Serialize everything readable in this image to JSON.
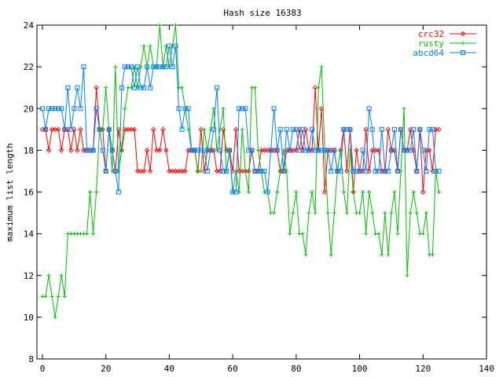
{
  "chart_data": {
    "type": "line",
    "title": "Hash size 16383",
    "xlabel": "",
    "ylabel": "maximum list length",
    "xlim": [
      0,
      140
    ],
    "ylim": [
      8,
      24
    ],
    "xticks": [
      0,
      20,
      40,
      60,
      80,
      100,
      120,
      140
    ],
    "yticks": [
      8,
      10,
      12,
      14,
      16,
      18,
      20,
      22,
      24
    ],
    "grid": false,
    "legend_position": "top-right",
    "series": [
      {
        "name": "crc32",
        "color": "#ff0000",
        "marker": "diamond",
        "x": [
          0,
          1,
          2,
          3,
          4,
          5,
          6,
          7,
          8,
          9,
          10,
          11,
          12,
          13,
          14,
          15,
          16,
          17,
          18,
          19,
          20,
          21,
          22,
          23,
          24,
          25,
          26,
          27,
          28,
          29,
          30,
          31,
          32,
          33,
          34,
          35,
          36,
          37,
          38,
          39,
          40,
          41,
          42,
          43,
          44,
          45,
          46,
          47,
          48,
          49,
          50,
          51,
          52,
          53,
          54,
          55,
          56,
          57,
          58,
          59,
          60,
          61,
          62,
          63,
          64,
          65,
          66,
          67,
          68,
          69,
          70,
          71,
          72,
          73,
          74,
          75,
          76,
          77,
          78,
          79,
          80,
          81,
          82,
          83,
          84,
          85,
          86,
          87,
          88,
          89,
          90,
          91,
          92,
          93,
          94,
          95,
          96,
          97,
          98,
          99,
          100,
          101,
          102,
          103,
          104,
          105,
          106,
          107,
          108,
          109,
          110,
          111,
          112,
          113,
          114,
          115,
          116,
          117,
          118,
          119,
          120,
          121,
          122,
          123,
          124,
          125
        ],
        "y": [
          19,
          19,
          18,
          19,
          19,
          19,
          18,
          19,
          19,
          18,
          19,
          18,
          19,
          18,
          18,
          18,
          18,
          21,
          19,
          19,
          17,
          19,
          18,
          17,
          19,
          18,
          19,
          19,
          19,
          19,
          17,
          17,
          17,
          18,
          17,
          19,
          18,
          18,
          19,
          18,
          17,
          17,
          17,
          17,
          17,
          17,
          18,
          18,
          18,
          17,
          19,
          17,
          18,
          18,
          18,
          17,
          17,
          19,
          18,
          18,
          17,
          19,
          17,
          17,
          17,
          17,
          18,
          17,
          17,
          18,
          18,
          18,
          18,
          18,
          18,
          17,
          17,
          18,
          18,
          18,
          18,
          19,
          18,
          19,
          18,
          18,
          21,
          18,
          20,
          16,
          18,
          18,
          18,
          17,
          18,
          19,
          17,
          19,
          16,
          18,
          17,
          17,
          19,
          17,
          18,
          18,
          18,
          17,
          17,
          19,
          18,
          18,
          17,
          19,
          18,
          18,
          19,
          18,
          17,
          19,
          16,
          18,
          18,
          17,
          19,
          19
        ],
        "cap_y": [
          null,
          null,
          null,
          null,
          null,
          null,
          null,
          null,
          null,
          null,
          null,
          null,
          null,
          null,
          null,
          null,
          null,
          null,
          null,
          null,
          null,
          null,
          null,
          null,
          null,
          null,
          null,
          null,
          null,
          null,
          null,
          null,
          null,
          null,
          null,
          null,
          null,
          null,
          null,
          null,
          null,
          null,
          null,
          null,
          null,
          null,
          null,
          null,
          null,
          null,
          null,
          null,
          null,
          null,
          null,
          null,
          null,
          null,
          null,
          null,
          null,
          null,
          null,
          null,
          null,
          null,
          null,
          null,
          null,
          null,
          null,
          null,
          null,
          null,
          null,
          null,
          null,
          null,
          null,
          null,
          null,
          null,
          null,
          null,
          null,
          null,
          null,
          null,
          null,
          null,
          null,
          null,
          null,
          null,
          null,
          null,
          null,
          null,
          null,
          null,
          null,
          null,
          null,
          null,
          null,
          null,
          null,
          null,
          null,
          null,
          null,
          null,
          null,
          null,
          null,
          null,
          null,
          null,
          null,
          null,
          null,
          null,
          null,
          null,
          null,
          null
        ]
      },
      {
        "name": "rusty",
        "color": "#00c000",
        "marker": "plus",
        "x": [
          0,
          1,
          2,
          3,
          4,
          5,
          6,
          7,
          8,
          9,
          10,
          11,
          12,
          13,
          14,
          15,
          16,
          17,
          18,
          19,
          20,
          21,
          22,
          23,
          24,
          25,
          26,
          27,
          28,
          29,
          30,
          31,
          32,
          33,
          34,
          35,
          36,
          37,
          38,
          39,
          40,
          41,
          42,
          43,
          44,
          45,
          46,
          47,
          48,
          49,
          50,
          51,
          52,
          53,
          54,
          55,
          56,
          57,
          58,
          59,
          60,
          61,
          62,
          63,
          64,
          65,
          66,
          67,
          68,
          69,
          70,
          71,
          72,
          73,
          74,
          75,
          76,
          77,
          78,
          79,
          80,
          81,
          82,
          83,
          84,
          85,
          86,
          87,
          88,
          89,
          90,
          91,
          92,
          93,
          94,
          95,
          96,
          97,
          98,
          99,
          100,
          101,
          102,
          103,
          104,
          105,
          106,
          107,
          108,
          109,
          110,
          111,
          112,
          113,
          114,
          115,
          116,
          117,
          118,
          119,
          120,
          121,
          122,
          123,
          124,
          125
        ],
        "y": [
          11,
          11,
          12,
          11,
          10,
          11,
          12,
          11,
          14,
          14,
          14,
          14,
          14,
          14,
          14,
          16,
          14,
          16,
          19,
          19,
          21,
          19,
          17,
          22,
          17,
          18,
          20,
          21,
          21,
          22,
          21,
          22,
          23,
          22,
          23,
          22,
          22,
          24,
          22,
          23,
          22,
          23,
          24,
          21,
          21,
          20,
          19,
          18,
          18,
          17,
          17,
          19,
          18,
          19,
          20,
          18,
          19,
          20,
          17,
          18,
          16,
          17,
          16,
          19,
          17,
          16,
          21,
          21,
          18,
          17,
          16,
          16,
          15,
          15,
          16,
          17,
          18,
          17,
          14,
          15,
          16,
          14,
          14,
          13,
          15,
          16,
          15,
          21,
          22,
          18,
          15,
          13,
          15,
          17,
          18,
          16,
          15,
          18,
          16,
          15,
          15,
          16,
          14,
          16,
          15,
          14,
          14,
          13,
          15,
          13,
          15,
          16,
          14,
          17,
          20,
          12,
          15,
          16,
          15,
          14,
          14,
          15,
          13,
          13,
          17,
          16
        ],
        "cap_y": [
          null,
          null,
          null,
          null,
          null,
          null,
          null,
          null,
          null,
          null,
          null,
          null,
          null,
          null,
          null,
          null,
          null,
          null,
          null,
          null,
          null,
          null,
          null,
          null,
          null,
          null,
          null,
          null,
          null,
          null,
          null,
          null,
          null,
          null,
          null,
          null,
          null,
          null,
          null,
          null,
          null,
          null,
          null,
          null,
          null,
          null,
          null,
          null,
          null,
          null,
          null,
          null,
          null,
          null,
          null,
          null,
          null,
          null,
          null,
          null,
          null,
          null,
          null,
          null,
          null,
          null,
          null,
          null,
          null,
          null,
          null,
          null,
          null,
          null,
          null,
          null,
          null,
          null,
          null,
          null,
          null,
          null,
          null,
          null,
          null,
          null,
          null,
          null,
          null,
          null,
          null,
          null,
          null,
          null,
          null,
          null,
          null,
          null,
          null,
          null,
          null,
          null,
          null,
          null,
          null,
          null,
          null,
          null,
          null,
          null,
          null,
          null,
          null,
          null,
          null,
          null,
          null,
          null,
          null,
          null,
          null,
          null,
          null,
          null,
          null,
          null
        ]
      },
      {
        "name": "abcd64",
        "color": "#0080ff",
        "marker": "square",
        "x": [
          0,
          1,
          2,
          3,
          4,
          5,
          6,
          7,
          8,
          9,
          10,
          11,
          12,
          13,
          14,
          15,
          16,
          17,
          18,
          19,
          20,
          21,
          22,
          23,
          24,
          25,
          26,
          27,
          28,
          29,
          30,
          31,
          32,
          33,
          34,
          35,
          36,
          37,
          38,
          39,
          40,
          41,
          42,
          43,
          44,
          45,
          46,
          47,
          48,
          49,
          50,
          51,
          52,
          53,
          54,
          55,
          56,
          57,
          58,
          59,
          60,
          61,
          62,
          63,
          64,
          65,
          66,
          67,
          68,
          69,
          70,
          71,
          72,
          73,
          74,
          75,
          76,
          77,
          78,
          79,
          80,
          81,
          82,
          83,
          84,
          85,
          86,
          87,
          88,
          89,
          90,
          91,
          92,
          93,
          94,
          95,
          96,
          97,
          98,
          99,
          100,
          101,
          102,
          103,
          104,
          105,
          106,
          107,
          108,
          109,
          110,
          111,
          112,
          113,
          114,
          115,
          116,
          117,
          118,
          119,
          120,
          121,
          122,
          123,
          124,
          125
        ],
        "y": [
          20,
          19,
          20,
          20,
          20,
          20,
          20,
          19,
          21,
          19,
          20,
          21,
          20,
          22,
          18,
          18,
          18,
          20,
          19,
          18,
          17,
          19,
          18,
          17,
          16,
          21,
          22,
          22,
          22,
          21,
          22,
          21,
          21,
          22,
          21,
          22,
          22,
          22,
          22,
          22,
          23,
          22,
          23,
          20,
          19,
          20,
          20,
          18,
          18,
          18,
          18,
          18,
          17,
          18,
          19,
          21,
          18,
          17,
          17,
          18,
          16,
          16,
          20,
          20,
          20,
          18,
          18,
          17,
          17,
          17,
          17,
          16,
          18,
          20,
          18,
          19,
          17,
          19,
          18,
          19,
          19,
          18,
          19,
          18,
          18,
          19,
          18,
          18,
          18,
          18,
          18,
          17,
          18,
          17,
          17,
          19,
          19,
          19,
          17,
          17,
          17,
          18,
          17,
          20,
          19,
          17,
          17,
          19,
          17,
          17,
          18,
          19,
          17,
          19,
          18,
          18,
          18,
          19,
          17,
          19,
          18,
          17,
          19,
          19,
          17,
          17
        ],
        "cap_y": [
          null,
          null,
          null,
          null,
          null,
          null,
          null,
          null,
          null,
          null,
          null,
          null,
          null,
          null,
          null,
          null,
          null,
          null,
          null,
          null,
          null,
          null,
          null,
          null,
          null,
          null,
          null,
          null,
          null,
          null,
          null,
          null,
          null,
          null,
          null,
          null,
          null,
          null,
          null,
          null,
          null,
          null,
          null,
          null,
          null,
          null,
          null,
          null,
          null,
          null,
          null,
          null,
          null,
          null,
          null,
          null,
          null,
          null,
          null,
          null,
          null,
          null,
          null,
          null,
          null,
          null,
          null,
          null,
          null,
          null,
          null,
          null,
          null,
          null,
          null,
          null,
          null,
          null,
          null,
          null,
          null,
          null,
          null,
          null,
          null,
          null,
          null,
          null,
          null,
          null,
          null,
          null,
          null,
          null,
          null,
          null,
          null,
          null,
          null,
          null,
          null,
          null,
          null,
          null,
          null,
          null,
          null,
          null,
          null,
          null,
          null,
          null,
          null,
          null,
          null,
          null,
          null,
          null,
          null,
          null,
          null,
          null,
          null,
          null,
          null,
          null
        ]
      }
    ]
  }
}
